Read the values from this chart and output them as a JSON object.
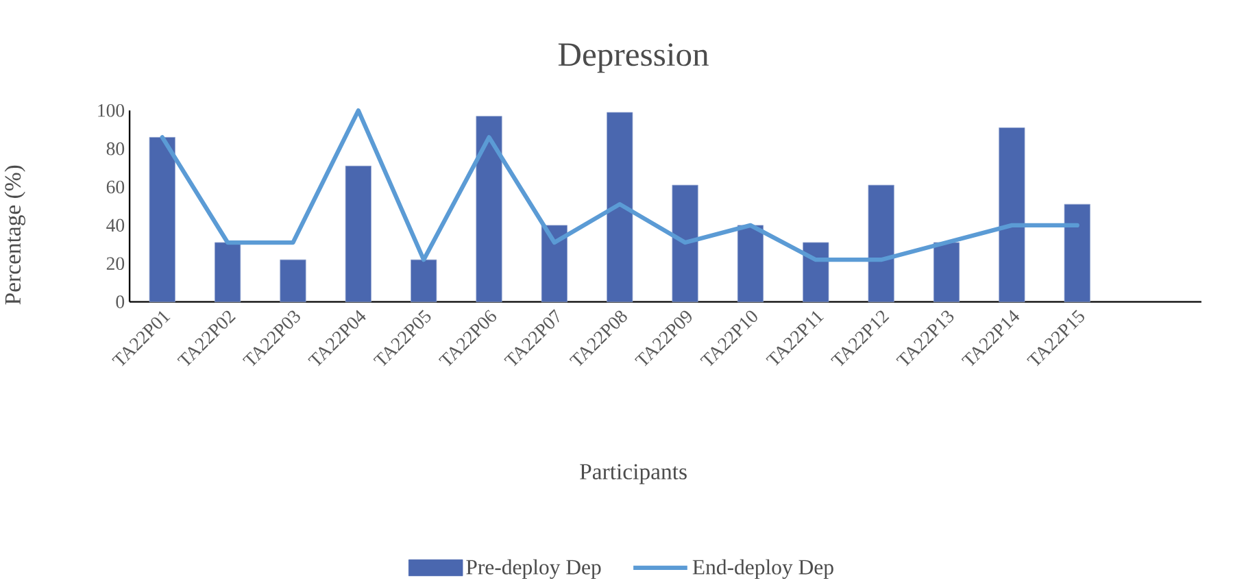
{
  "chart_data": {
    "type": "bar",
    "title": "Depression",
    "xlabel": "Participants",
    "ylabel": "Percentage (%)",
    "categories": [
      "TA22P01",
      "TA22P02",
      "TA22P03",
      "TA22P04",
      "TA22P05",
      "TA22P06",
      "TA22P07",
      "TA22P08",
      "TA22P09",
      "TA22P10",
      "TA22P11",
      "TA22P12",
      "TA22P13",
      "TA22P14",
      "TA22P15"
    ],
    "series": [
      {
        "name": "Pre-deploy Dep",
        "color": "#4a67af",
        "values": [
          86,
          31,
          22,
          71,
          22,
          97,
          40,
          99,
          61,
          40,
          31,
          61,
          31,
          91,
          51
        ]
      },
      {
        "name": "End-deploy Dep",
        "type": "line",
        "color": "#5b9bd5",
        "values": [
          86,
          31,
          31,
          100,
          22,
          86,
          31,
          51,
          31,
          40,
          22,
          22,
          31,
          40,
          40
        ]
      }
    ],
    "ylim": [
      0,
      100
    ],
    "yticks": [
      0,
      20,
      40,
      60,
      80,
      100
    ],
    "grid": false,
    "legend": "bottom"
  }
}
